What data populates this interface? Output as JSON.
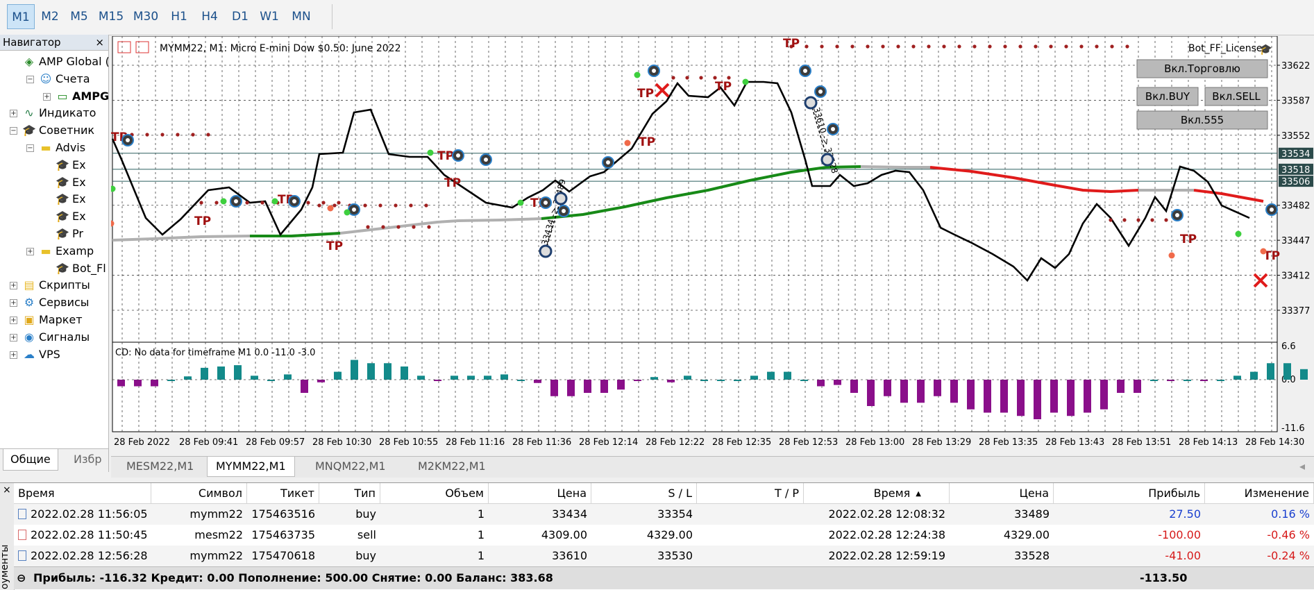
{
  "timeframes": [
    "M1",
    "M2",
    "M5",
    "M15",
    "M30",
    "H1",
    "H4",
    "D1",
    "W1",
    "MN"
  ],
  "active_timeframe": "M1",
  "navigator": {
    "title": "Навигатор",
    "close": "×",
    "items": [
      {
        "label": "AMP Global (E",
        "icon": "broker-icon"
      },
      {
        "label": "Счета",
        "icon": "accounts-icon"
      },
      {
        "label": "AMPG",
        "icon": "account-icon"
      },
      {
        "label": "Индикато",
        "icon": "indicators-icon"
      },
      {
        "label": "Советник",
        "icon": "experts-icon"
      },
      {
        "label": "Advis",
        "icon": "folder-icon"
      },
      {
        "label": "Ex",
        "icon": "expert-icon"
      },
      {
        "label": "Ex",
        "icon": "expert-icon"
      },
      {
        "label": "Ex",
        "icon": "expert-icon"
      },
      {
        "label": "Ex",
        "icon": "expert-icon"
      },
      {
        "label": "Pr",
        "icon": "expert-icon"
      },
      {
        "label": "Examp",
        "icon": "folder-icon"
      },
      {
        "label": "Bot_Fl",
        "icon": "expert-icon"
      },
      {
        "label": "Скрипты",
        "icon": "scripts-icon"
      },
      {
        "label": "Сервисы",
        "icon": "services-icon"
      },
      {
        "label": "Маркет",
        "icon": "market-icon"
      },
      {
        "label": "Сигналы",
        "icon": "signals-icon"
      },
      {
        "label": "VPS",
        "icon": "vps-icon"
      }
    ],
    "tabs": [
      "Общие",
      "Избр"
    ]
  },
  "chart": {
    "header": "MYMM22, M1:  Micro E-mini Dow $0.50: June 2022",
    "bot_label": "Bot_FF_License",
    "buttons": {
      "trade": "Вкл.Торговлю",
      "buy": "Вкл.BUY",
      "sell": "Вкл.SELL",
      "b555": "Вкл.555"
    },
    "price_ticks": [
      "33622",
      "33587",
      "33552",
      "33482",
      "33447",
      "33412",
      "33377"
    ],
    "price_tags": [
      "33534",
      "33518",
      "33506"
    ],
    "time_ticks": [
      "28 Feb 2022",
      "28 Feb 09:41",
      "28 Feb 09:57",
      "28 Feb 10:30",
      "28 Feb 10:55",
      "28 Feb 11:16",
      "28 Feb 11:36",
      "28 Feb 12:14",
      "28 Feb 12:22",
      "28 Feb 12:35",
      "28 Feb 12:53",
      "28 Feb 13:00",
      "28 Feb 13:29",
      "28 Feb 13:35",
      "28 Feb 13:43",
      "28 Feb 13:51",
      "28 Feb 14:13",
      "28 Feb 14:30"
    ],
    "tp_label": "TP",
    "trade_labels": [
      "33434 -> 33489",
      "33610 -> 33528"
    ],
    "indicator": {
      "label": "CD: No data for timeframe M1 0.0 -11.0 -3.0",
      "ticks": [
        "6.6",
        "0.0",
        "-11.6"
      ]
    }
  },
  "chart_tabs": [
    "MESM22,M1",
    "MYMM22,M1",
    "MNQM22,M1",
    "M2KM22,M1"
  ],
  "active_chart_tab": "MYMM22,M1",
  "table": {
    "side_label": "оументы",
    "columns": [
      "Время",
      "Символ",
      "Тикет",
      "Тип",
      "Объем",
      "Цена",
      "S / L",
      "T / P",
      "Время",
      "Цена",
      "Прибыль",
      "Изменение"
    ],
    "sort_arrow": "▲",
    "rows": [
      {
        "time": "2022.02.28 11:56:05",
        "symbol": "mymm22",
        "ticket": "175463516",
        "type": "buy",
        "volume": "1",
        "price": "33434",
        "sl": "33354",
        "tp": "",
        "time2": "2022.02.28 12:08:32",
        "price2": "33489",
        "profit": "27.50",
        "change": "0.16 %"
      },
      {
        "time": "2022.02.28 11:50:45",
        "symbol": "mesm22",
        "ticket": "175463735",
        "type": "sell",
        "volume": "1",
        "price": "4309.00",
        "sl": "4329.00",
        "tp": "",
        "time2": "2022.02.28 12:24:38",
        "price2": "4329.00",
        "profit": "-100.00",
        "change": "-0.46 %"
      },
      {
        "time": "2022.02.28 12:56:28",
        "symbol": "mymm22",
        "ticket": "175470618",
        "type": "buy",
        "volume": "1",
        "price": "33610",
        "sl": "33530",
        "tp": "",
        "time2": "2022.02.28 12:59:19",
        "price2": "33528",
        "profit": "-41.00",
        "change": "-0.24 %"
      }
    ],
    "summary": "Прибыль: -116.32  Кредит: 0.00  Пополнение: 500.00  Снятие: 0.00  Баланс: 383.68",
    "summary_total": "-113.50",
    "collapse_icon": "⊖"
  },
  "colors": {
    "up": "#2a7fc8",
    "down": "#d62020",
    "ma_green": "#178a17",
    "ma_red": "#e01b1b",
    "ma_gray": "#b0b0b0",
    "hist_teal": "#138a8a",
    "hist_purple": "#8a0f8a",
    "tp_red": "#a01010",
    "sl_pink": "#f7a8ad"
  }
}
